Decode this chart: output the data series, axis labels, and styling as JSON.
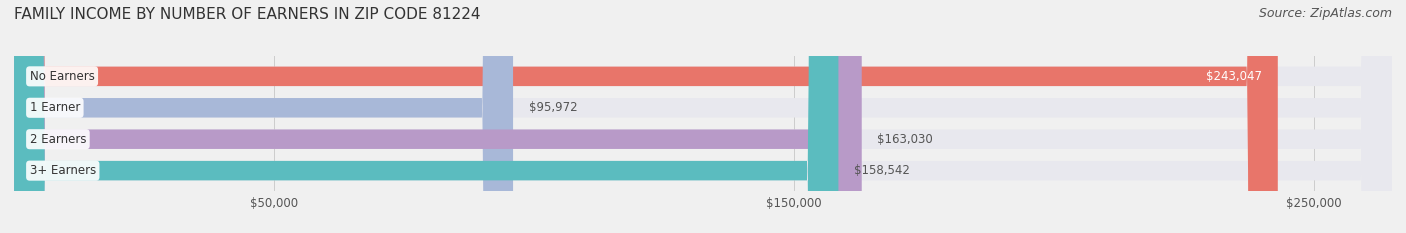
{
  "title": "FAMILY INCOME BY NUMBER OF EARNERS IN ZIP CODE 81224",
  "source": "Source: ZipAtlas.com",
  "categories": [
    "No Earners",
    "1 Earner",
    "2 Earners",
    "3+ Earners"
  ],
  "values": [
    243047,
    95972,
    163030,
    158542
  ],
  "bar_colors": [
    "#e8756a",
    "#a8b8d8",
    "#b89ac8",
    "#5bbcbf"
  ],
  "value_label_colors": [
    "#ffffff",
    "#555555",
    "#555555",
    "#555555"
  ],
  "value_labels": [
    "$243,047",
    "$95,972",
    "$163,030",
    "$158,542"
  ],
  "xlim": [
    0,
    265000
  ],
  "xticks": [
    50000,
    150000,
    250000
  ],
  "xtick_labels": [
    "$50,000",
    "$150,000",
    "$250,000"
  ],
  "background_color": "#f0f0f0",
  "bar_background": "#e8e8ee",
  "title_fontsize": 11,
  "source_fontsize": 9,
  "bar_height": 0.62,
  "figsize": [
    14.06,
    2.33
  ],
  "dpi": 100
}
